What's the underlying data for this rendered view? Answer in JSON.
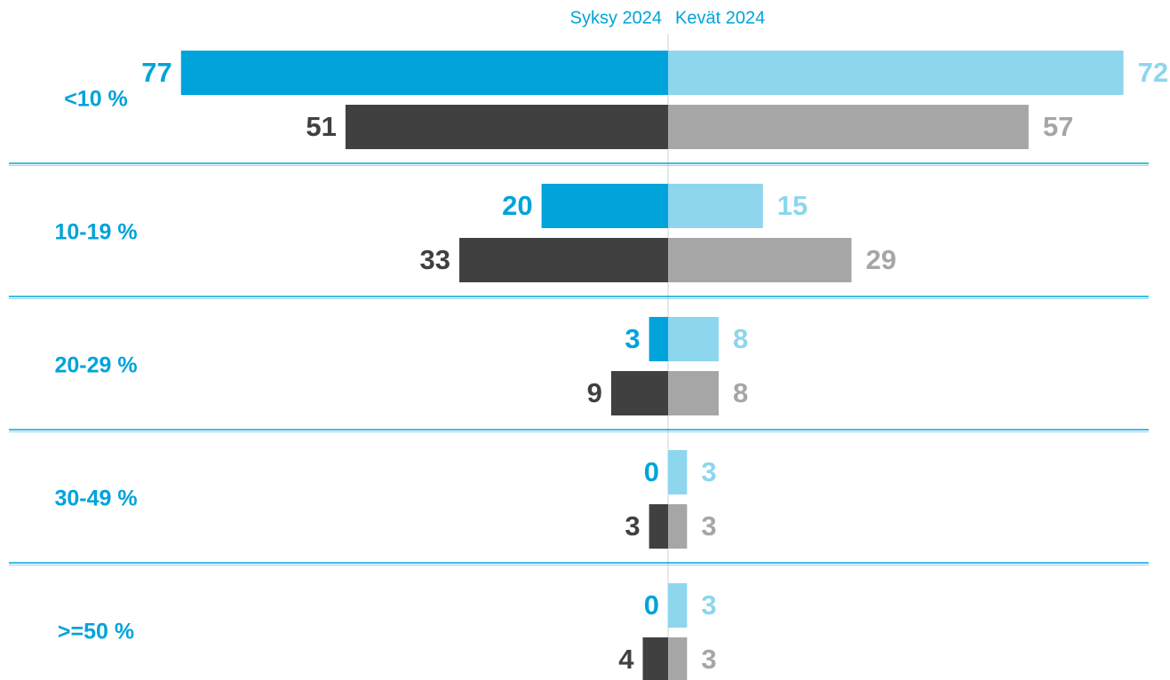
{
  "chart_data": {
    "type": "butterfly_bar",
    "categories": [
      "<10 %",
      "10-19 %",
      "20-29 %",
      "30-49 %",
      ">=50 %"
    ],
    "panels": [
      {
        "title": "Syksy 2024",
        "side": "left",
        "series": [
          {
            "color": "#00a3da",
            "values": [
              77,
              20,
              3,
              0,
              0
            ]
          },
          {
            "color": "#404040",
            "values": [
              51,
              33,
              9,
              3,
              4
            ]
          }
        ]
      },
      {
        "title": "Kevät 2024",
        "side": "right",
        "series": [
          {
            "color": "#8dd6ee",
            "values": [
              72,
              15,
              8,
              3,
              3
            ]
          },
          {
            "color": "#a6a6a6",
            "values": [
              57,
              29,
              8,
              3,
              3
            ]
          }
        ]
      }
    ]
  }
}
